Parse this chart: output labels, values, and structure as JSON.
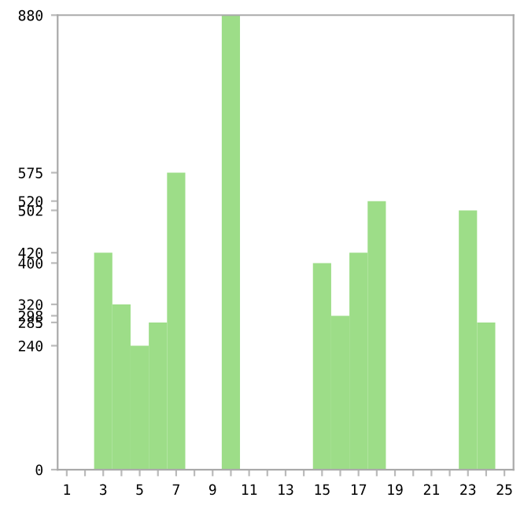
{
  "chart_data": {
    "type": "bar",
    "categories": [
      "1",
      null,
      "3",
      null,
      "5",
      null,
      "7",
      null,
      "9",
      null,
      "11",
      null,
      "13",
      null,
      "15",
      null,
      "17",
      null,
      "19",
      null,
      "21",
      null,
      "23",
      null,
      "25"
    ],
    "values": [
      0,
      0,
      420,
      320,
      240,
      285,
      575,
      0,
      0,
      880,
      0,
      0,
      0,
      0,
      400,
      298,
      420,
      520,
      0,
      0,
      0,
      0,
      502,
      285,
      0
    ],
    "color": "#9ddd88",
    "ylim": [
      0,
      880
    ],
    "yticks": [
      0,
      240,
      285,
      298,
      320,
      400,
      420,
      502,
      520,
      575,
      880
    ],
    "grid": false
  }
}
